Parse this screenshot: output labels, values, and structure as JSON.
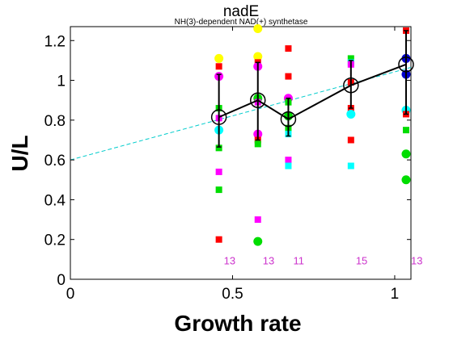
{
  "chart_data": {
    "type": "scatter",
    "title": "nadE",
    "subtitle": "NH(3)-dependent NAD(+) synthetase",
    "xlabel": "Growth rate",
    "ylabel": "U/L",
    "xlim": [
      0,
      1.05
    ],
    "ylim": [
      0,
      1.27
    ],
    "xticks": [
      0,
      0.5,
      1
    ],
    "xtick_labels": [
      "0",
      "0.5",
      "1"
    ],
    "yticks": [
      0,
      0.2,
      0.4,
      0.6,
      0.8,
      1.0,
      1.2
    ],
    "ytick_labels": [
      "0",
      "0.2",
      "0.4",
      "0.6",
      "0.8",
      "1",
      "1.2"
    ],
    "grid": false,
    "legend": "none",
    "colors": {
      "red": "#ff0000",
      "green": "#00dd00",
      "magenta": "#ff00ff",
      "cyan": "#00ffff",
      "yellow": "#ffff00",
      "blue": "#0000cc",
      "fit_line": "#00cccc",
      "mean_line": "#000000",
      "count_label": "#cc33cc"
    },
    "points": [
      {
        "x": 0.458,
        "y": 1.11,
        "color": "yellow",
        "shape": "circle"
      },
      {
        "x": 0.458,
        "y": 1.07,
        "color": "red",
        "shape": "square"
      },
      {
        "x": 0.458,
        "y": 1.02,
        "color": "magenta",
        "shape": "circle"
      },
      {
        "x": 0.458,
        "y": 0.86,
        "color": "green",
        "shape": "square"
      },
      {
        "x": 0.458,
        "y": 0.81,
        "color": "magenta",
        "shape": "square"
      },
      {
        "x": 0.458,
        "y": 0.75,
        "color": "cyan",
        "shape": "circle"
      },
      {
        "x": 0.458,
        "y": 0.66,
        "color": "green",
        "shape": "square"
      },
      {
        "x": 0.458,
        "y": 0.54,
        "color": "magenta",
        "shape": "square"
      },
      {
        "x": 0.458,
        "y": 0.45,
        "color": "green",
        "shape": "square"
      },
      {
        "x": 0.458,
        "y": 0.2,
        "color": "red",
        "shape": "square"
      },
      {
        "x": 0.578,
        "y": 1.26,
        "color": "yellow",
        "shape": "circle"
      },
      {
        "x": 0.578,
        "y": 1.12,
        "color": "yellow",
        "shape": "circle"
      },
      {
        "x": 0.578,
        "y": 1.09,
        "color": "red",
        "shape": "square"
      },
      {
        "x": 0.578,
        "y": 1.07,
        "color": "magenta",
        "shape": "circle"
      },
      {
        "x": 0.578,
        "y": 0.91,
        "color": "green",
        "shape": "circle"
      },
      {
        "x": 0.578,
        "y": 0.89,
        "color": "magenta",
        "shape": "square"
      },
      {
        "x": 0.578,
        "y": 0.73,
        "color": "magenta",
        "shape": "circle"
      },
      {
        "x": 0.578,
        "y": 0.7,
        "color": "red",
        "shape": "square"
      },
      {
        "x": 0.578,
        "y": 0.68,
        "color": "green",
        "shape": "square"
      },
      {
        "x": 0.578,
        "y": 0.3,
        "color": "magenta",
        "shape": "square"
      },
      {
        "x": 0.578,
        "y": 0.19,
        "color": "green",
        "shape": "circle"
      },
      {
        "x": 0.672,
        "y": 1.16,
        "color": "red",
        "shape": "square"
      },
      {
        "x": 0.672,
        "y": 1.02,
        "color": "red",
        "shape": "square"
      },
      {
        "x": 0.672,
        "y": 0.91,
        "color": "magenta",
        "shape": "circle"
      },
      {
        "x": 0.672,
        "y": 0.89,
        "color": "green",
        "shape": "square"
      },
      {
        "x": 0.672,
        "y": 0.82,
        "color": "green",
        "shape": "circle"
      },
      {
        "x": 0.672,
        "y": 0.76,
        "color": "green",
        "shape": "square"
      },
      {
        "x": 0.672,
        "y": 0.73,
        "color": "cyan",
        "shape": "square"
      },
      {
        "x": 0.672,
        "y": 0.6,
        "color": "magenta",
        "shape": "square"
      },
      {
        "x": 0.672,
        "y": 0.57,
        "color": "cyan",
        "shape": "square"
      },
      {
        "x": 0.865,
        "y": 1.11,
        "color": "green",
        "shape": "square"
      },
      {
        "x": 0.865,
        "y": 1.09,
        "color": "cyan",
        "shape": "square"
      },
      {
        "x": 0.865,
        "y": 1.08,
        "color": "magenta",
        "shape": "square"
      },
      {
        "x": 0.865,
        "y": 0.99,
        "color": "red",
        "shape": "square"
      },
      {
        "x": 0.865,
        "y": 0.86,
        "color": "red",
        "shape": "square"
      },
      {
        "x": 0.865,
        "y": 0.83,
        "color": "cyan",
        "shape": "circle"
      },
      {
        "x": 0.865,
        "y": 0.7,
        "color": "red",
        "shape": "square"
      },
      {
        "x": 0.865,
        "y": 0.57,
        "color": "cyan",
        "shape": "square"
      },
      {
        "x": 1.035,
        "y": 1.25,
        "color": "red",
        "shape": "square"
      },
      {
        "x": 1.035,
        "y": 1.11,
        "color": "blue",
        "shape": "circle"
      },
      {
        "x": 1.035,
        "y": 1.03,
        "color": "blue",
        "shape": "circle"
      },
      {
        "x": 1.035,
        "y": 0.85,
        "color": "cyan",
        "shape": "circle"
      },
      {
        "x": 1.035,
        "y": 0.83,
        "color": "red",
        "shape": "square"
      },
      {
        "x": 1.035,
        "y": 0.75,
        "color": "green",
        "shape": "square"
      },
      {
        "x": 1.035,
        "y": 0.63,
        "color": "green",
        "shape": "circle"
      },
      {
        "x": 1.035,
        "y": 0.5,
        "color": "green",
        "shape": "circle"
      }
    ],
    "means": [
      {
        "x": 0.458,
        "y": 0.815,
        "err_low": 0.665,
        "err_high": 1.03
      },
      {
        "x": 0.578,
        "y": 0.9,
        "err_low": 0.7,
        "err_high": 1.09
      },
      {
        "x": 0.672,
        "y": 0.805,
        "err_low": 0.72,
        "err_high": 0.91
      },
      {
        "x": 0.865,
        "y": 0.975,
        "err_low": 0.86,
        "err_high": 1.1
      },
      {
        "x": 1.035,
        "y": 1.08,
        "err_low": 0.83,
        "err_high": 1.25
      }
    ],
    "fit_line": {
      "x": [
        0,
        1.05
      ],
      "y": [
        0.6,
        1.065
      ],
      "style": "dashed"
    },
    "count_labels": [
      {
        "x": 0.458,
        "y": 0.095,
        "text": "13"
      },
      {
        "x": 0.578,
        "y": 0.095,
        "text": "13"
      },
      {
        "x": 0.672,
        "y": 0.095,
        "text": "11"
      },
      {
        "x": 0.865,
        "y": 0.095,
        "text": "15"
      },
      {
        "x": 1.035,
        "y": 0.095,
        "text": "13"
      }
    ]
  }
}
